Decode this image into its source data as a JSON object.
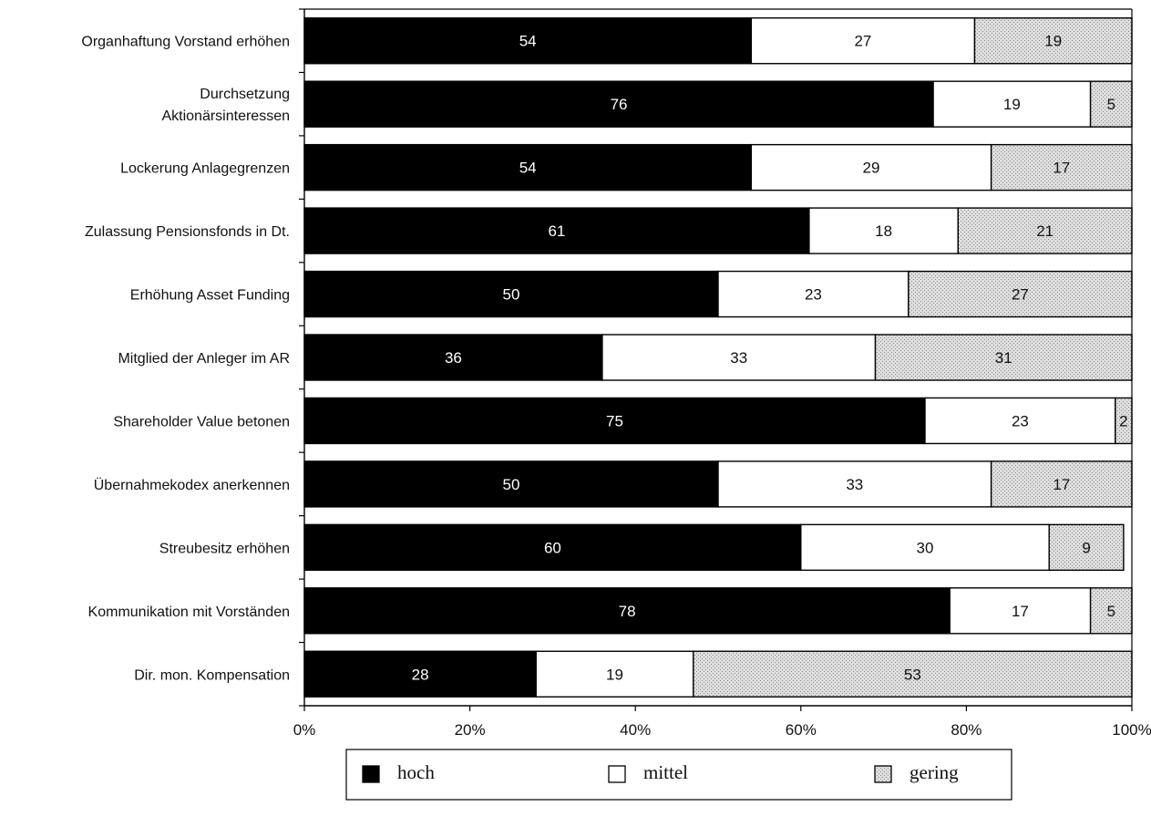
{
  "chart_data": {
    "type": "bar",
    "orientation": "horizontal",
    "stacked": true,
    "percent_stacked": true,
    "categories": [
      "Organhaftung Vorstand erhöhen",
      [
        "Durchsetzung",
        "Aktionärsinteressen"
      ],
      "Lockerung Anlagegrenzen",
      "Zulassung Pensionsfonds in Dt.",
      "Erhöhung Asset Funding",
      "Mitglied der Anleger im AR",
      "Shareholder Value betonen",
      "Übernahmekodex anerkennen",
      "Streubesitz erhöhen",
      "Kommunikation mit Vorständen",
      "Dir. mon. Kompensation"
    ],
    "series": [
      {
        "name": "hoch",
        "color": "#000000",
        "text_color": "#ffffff",
        "values": [
          54,
          76,
          54,
          61,
          50,
          36,
          75,
          50,
          60,
          78,
          28
        ]
      },
      {
        "name": "mittel",
        "color": "#ffffff",
        "text_color": "#111111",
        "values": [
          27,
          19,
          29,
          18,
          23,
          33,
          23,
          33,
          30,
          17,
          19
        ]
      },
      {
        "name": "gering",
        "color": "#d6d6d6",
        "text_color": "#111111",
        "values": [
          19,
          5,
          17,
          21,
          27,
          31,
          2,
          17,
          9,
          5,
          53
        ]
      }
    ],
    "x_ticks": [
      "0%",
      "20%",
      "40%",
      "60%",
      "80%",
      "100%"
    ],
    "xlim": [
      0,
      100
    ],
    "legend": {
      "position": "bottom",
      "items": [
        {
          "label": "hoch",
          "swatch": "#000000"
        },
        {
          "label": "mittel",
          "swatch": "#ffffff"
        },
        {
          "label": "gering",
          "swatch": "#d6d6d6"
        }
      ]
    },
    "grid": false,
    "title": "",
    "xlabel": "",
    "ylabel": ""
  }
}
